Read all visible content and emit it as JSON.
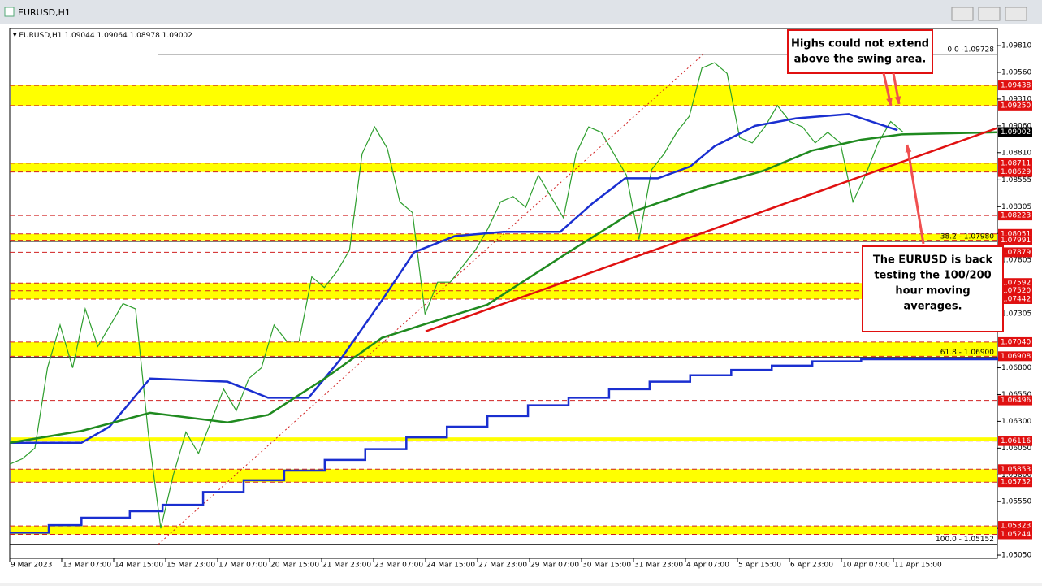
{
  "window_title": "EURUSD,H1",
  "chart_data": {
    "type": "line",
    "symbol": "EURUSD,H1",
    "ohlc": [
      1.09044,
      1.09064,
      1.08978,
      1.09002
    ],
    "categories": [
      "9 Mar 2023",
      "13 Mar 07:00",
      "14 Mar 15:00",
      "15 Mar 23:00",
      "17 Mar 07:00",
      "20 Mar 15:00",
      "21 Mar 23:00",
      "23 Mar 07:00",
      "24 Mar 15:00",
      "27 Mar 23:00",
      "29 Mar 07:00",
      "30 Mar 15:00",
      "31 Mar 23:00",
      "4 Apr 07:00",
      "5 Apr 15:00",
      "6 Apr 23:00",
      "10 Apr 07:00",
      "11 Apr 15:00"
    ],
    "xlim": [
      0,
      19
    ],
    "ylim": [
      1.0502,
      1.0997
    ],
    "yticks": [
      {
        "value": 1.0981,
        "label": "1.09810"
      },
      {
        "value": 1.0956,
        "label": "1.09560"
      },
      {
        "value": 1.0931,
        "label": "1.09310"
      },
      {
        "value": 1.0906,
        "label": "1.09060"
      },
      {
        "value": 1.0881,
        "label": "1.08810"
      },
      1.08555,
      1.08305,
      1.08055,
      1.07805,
      1.07555,
      1.07305,
      {
        "value": 1.0705,
        "label": "1.07050"
      },
      {
        "value": 1.068,
        "label": "1.06800"
      },
      {
        "value": 1.0655,
        "label": "1.06550"
      },
      {
        "value": 1.063,
        "label": "1.06300"
      },
      {
        "value": 1.0605,
        "label": "1.06050"
      },
      {
        "value": 1.058,
        "label": "1.05800"
      },
      {
        "value": 1.0555,
        "label": "1.05550"
      },
      {
        "value": 1.053,
        "label": "1.05300"
      },
      {
        "value": 1.0505,
        "label": "1.05050"
      }
    ],
    "price": {
      "color": "#2e9e2e",
      "values": [
        1.059,
        1.0595,
        1.0605,
        1.068,
        1.072,
        1.068,
        1.0735,
        1.07,
        1.072,
        1.074,
        1.0735,
        1.062,
        1.053,
        1.058,
        1.062,
        1.06,
        1.063,
        1.066,
        1.064,
        1.067,
        1.068,
        1.072,
        1.0705,
        1.0705,
        1.0765,
        1.0755,
        1.077,
        1.079,
        1.088,
        1.0905,
        1.0885,
        1.0835,
        1.0825,
        1.073,
        1.076,
        1.076,
        1.0775,
        1.079,
        1.081,
        1.0835,
        1.084,
        1.083,
        1.086,
        1.084,
        1.082,
        1.088,
        1.0905,
        1.09,
        1.088,
        1.086,
        1.08,
        1.0865,
        1.088,
        1.09,
        1.0915,
        1.096,
        1.0965,
        1.0955,
        1.0895,
        1.089,
        1.0905,
        1.0925,
        1.091,
        1.0905,
        1.089,
        1.09,
        1.089,
        1.0835,
        1.086,
        1.089,
        1.091,
        1.09
      ]
    },
    "series": [
      {
        "name": "H1 MA 100",
        "color": "#1a2fd0",
        "x": [
          0,
          1.38,
          1.92,
          2.7,
          4.19,
          4.97,
          5.75,
          6.38,
          7.16,
          7.78,
          8.56,
          9.5,
          10.59,
          11.22,
          11.84,
          12.47,
          13.09,
          13.56,
          14.34,
          15.13,
          16.14,
          17.08
        ],
        "values": [
          1.061,
          1.061,
          1.0625,
          1.067,
          1.0667,
          1.0652,
          1.0652,
          1.0689,
          1.0743,
          1.0788,
          1.0803,
          1.0807,
          1.0807,
          1.0834,
          1.0857,
          1.0857,
          1.0868,
          1.0887,
          1.0906,
          1.0913,
          1.0917,
          1.0902
        ]
      },
      {
        "name": "H1 MA 200",
        "color": "#1f8a1f",
        "x": [
          0,
          1.38,
          2.7,
          4.19,
          4.97,
          6.06,
          7.16,
          7.94,
          9.19,
          10.75,
          12.0,
          13.25,
          14.5,
          15.44,
          16.38,
          17.16,
          19.0
        ],
        "values": [
          1.061,
          1.0621,
          1.0638,
          1.0629,
          1.0636,
          1.067,
          1.0708,
          1.072,
          1.0739,
          1.0788,
          1.0826,
          1.0847,
          1.0864,
          1.0883,
          1.0893,
          1.0898,
          1.09
        ]
      },
      {
        "name": "D1 MA",
        "color": "#1a2fd0",
        "step": true,
        "x": [
          0,
          0.75,
          1.38,
          2.31,
          2.94,
          3.72,
          4.5,
          5.28,
          6.06,
          6.84,
          7.63,
          8.41,
          9.19,
          9.97,
          10.75,
          11.53,
          12.31,
          13.09,
          13.88,
          14.66,
          15.44,
          16.38,
          19.0
        ],
        "values": [
          1.0526,
          1.0533,
          1.054,
          1.0546,
          1.0552,
          1.0564,
          1.0575,
          1.0584,
          1.0594,
          1.0604,
          1.0615,
          1.0625,
          1.0635,
          1.0645,
          1.0652,
          1.066,
          1.0667,
          1.0673,
          1.0678,
          1.0682,
          1.0686,
          1.0688,
          1.069
        ]
      }
    ],
    "trendline": {
      "color": "#e01010",
      "x": [
        8.0,
        19.0
      ],
      "values": [
        1.0714,
        1.0904
      ]
    },
    "fib_diagonal": {
      "x": [
        2.86,
        13.34
      ],
      "values": [
        1.05152,
        1.09728
      ]
    },
    "levels": [
      1.09438,
      {
        "value": 1.0925,
        "label": "1.09250"
      },
      1.08711,
      1.08629,
      1.08223,
      1.08051,
      1.07991,
      1.07879,
      1.07592,
      {
        "value": 1.0752,
        "label": "1.07520"
      },
      1.07442,
      {
        "value": 1.0704,
        "label": "1.07040"
      },
      1.06908,
      1.06496,
      1.06116,
      1.05853,
      1.05732,
      1.05323,
      1.05244
    ],
    "current_price": 1.09002,
    "zones": [
      {
        "top": 1.09438,
        "bottom": 1.0925
      },
      {
        "top": 1.08711,
        "bottom": 1.08629
      },
      {
        "top": 1.08051,
        "bottom": 1.07991
      },
      {
        "top": 1.07592,
        "bottom": 1.07442
      },
      {
        "top": 1.0704,
        "bottom": 1.06908
      },
      {
        "top": 1.0615,
        "bottom": 1.06116
      },
      {
        "top": 1.05853,
        "bottom": 1.05732
      },
      {
        "top": 1.05323,
        "bottom": 1.05244
      }
    ],
    "fib": [
      {
        "value": 1.09728,
        "label": "0.0 -1.09728"
      },
      {
        "value": 1.0798,
        "label": "38.2 - 1.07980"
      },
      {
        "value": 1.069,
        "label": "61.8 - 1.06900"
      },
      {
        "value": 1.05152,
        "label": "100.0 - 1.05152"
      }
    ],
    "annotations": [
      {
        "lines": [
          "Highs could not extend",
          "above the swing area."
        ]
      },
      {
        "lines": [
          "The EURUSD is back",
          "testing the 100/200",
          "hour moving",
          "averages."
        ]
      }
    ]
  }
}
